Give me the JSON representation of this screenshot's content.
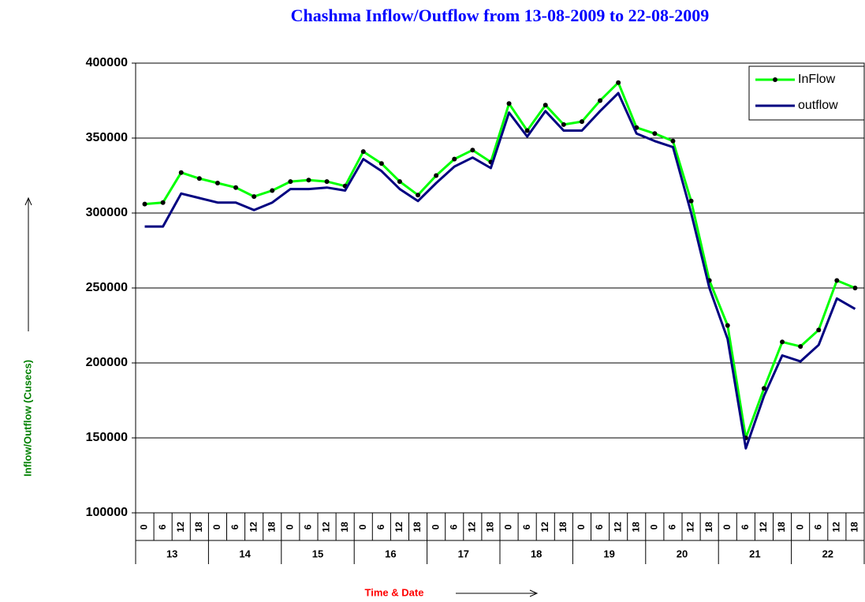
{
  "chart_data": {
    "type": "line",
    "title": "Chashma Inflow/Outflow from 13-08-2009 to 22-08-2009",
    "x_label": "Time & Date",
    "y_label": "Inflow/Outflow (Cusecs)",
    "categories": [
      "0",
      "6",
      "12",
      "18",
      "0",
      "6",
      "12",
      "18",
      "0",
      "6",
      "12",
      "18",
      "0",
      "6",
      "12",
      "18",
      "0",
      "6",
      "12",
      "18",
      "0",
      "6",
      "12",
      "18",
      "0",
      "6",
      "12",
      "18",
      "0",
      "6",
      "12",
      "18",
      "0",
      "6",
      "12",
      "18",
      "0",
      "6",
      "12",
      "18"
    ],
    "dates": [
      "13",
      "14",
      "15",
      "16",
      "17",
      "18",
      "19",
      "20",
      "21",
      "22"
    ],
    "series": [
      {
        "name": "InFlow",
        "color": "#00ff00",
        "marker_color": "#000000",
        "values": [
          306000,
          307000,
          327000,
          323000,
          320000,
          317000,
          311000,
          315000,
          321000,
          322000,
          321000,
          318000,
          341000,
          333000,
          321000,
          312000,
          325000,
          336000,
          342000,
          334000,
          373000,
          355000,
          372000,
          359000,
          361000,
          375000,
          387000,
          357000,
          353000,
          348000,
          308000,
          255000,
          225000,
          150000,
          183000,
          214000,
          211000,
          222000,
          255000,
          250000
        ]
      },
      {
        "name": "outflow",
        "color": "#000080",
        "values": [
          291000,
          291000,
          313000,
          310000,
          307000,
          307000,
          302000,
          307000,
          316000,
          316000,
          317000,
          315000,
          336000,
          328000,
          316000,
          308000,
          320000,
          331000,
          337000,
          330000,
          367000,
          351000,
          368000,
          355000,
          355000,
          368000,
          380000,
          353000,
          348000,
          344000,
          300000,
          250000,
          216000,
          143000,
          178000,
          205000,
          201000,
          212000,
          243000,
          236000
        ]
      }
    ],
    "ylim": [
      100000,
      400000
    ],
    "yticks": [
      100000,
      150000,
      200000,
      250000,
      300000,
      350000,
      400000
    ],
    "grid": true,
    "legend": "top-right"
  }
}
